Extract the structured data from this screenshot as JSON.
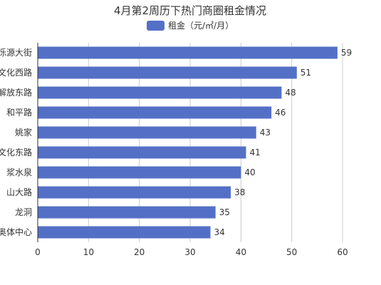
{
  "chart_data": {
    "type": "bar",
    "orientation": "horizontal",
    "title": "4月第2周历下热门商圈租金情况",
    "categories": [
      "泺源大街",
      "文化西路",
      "解放东路",
      "和平路",
      "姚家",
      "文化东路",
      "浆水泉",
      "山大路",
      "龙洞",
      "奥体中心"
    ],
    "series": [
      {
        "name": "租金（元/㎡/月）",
        "values": [
          59,
          51,
          48,
          46,
          43,
          41,
          40,
          38,
          35,
          34
        ]
      }
    ],
    "xlim": [
      0,
      60
    ],
    "xticks": [
      0,
      10,
      20,
      30,
      40,
      50,
      60
    ],
    "grid": true,
    "legend_position": "top-center",
    "bar_color": "#5470c6"
  }
}
